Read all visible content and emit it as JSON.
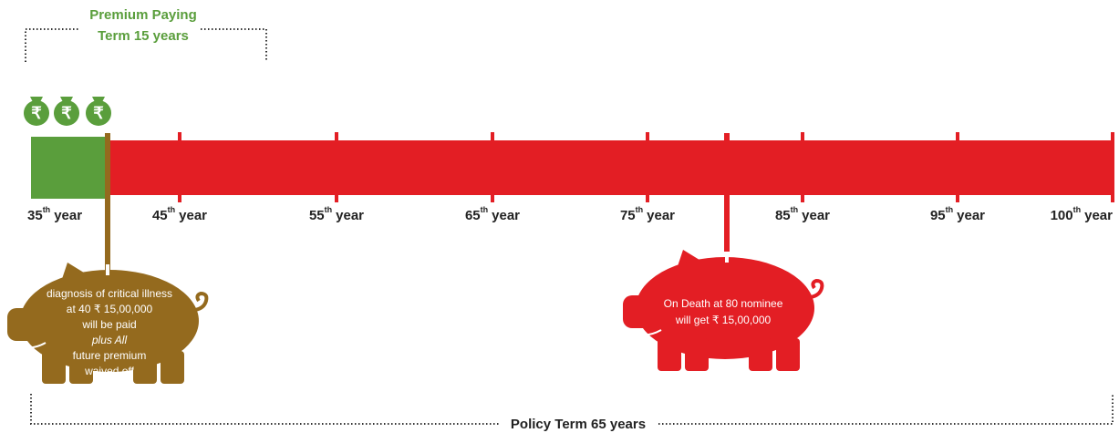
{
  "premium_term": {
    "line1": "Premium Paying",
    "line2": "Term 15 years"
  },
  "currency_icon": "₹",
  "timeline": {
    "labels": [
      {
        "number": "35",
        "suffix": "th",
        "word": "year"
      },
      {
        "number": "45",
        "suffix": "th",
        "word": "year"
      },
      {
        "number": "55",
        "suffix": "th",
        "word": "year"
      },
      {
        "number": "65",
        "suffix": "th",
        "word": "year"
      },
      {
        "number": "75",
        "suffix": "th",
        "word": "year"
      },
      {
        "number": "85",
        "suffix": "th",
        "word": "year"
      },
      {
        "number": "95",
        "suffix": "th",
        "word": "year"
      },
      {
        "number": "100",
        "suffix": "th",
        "word": "year"
      }
    ]
  },
  "illness_pig": {
    "lines": [
      "diagnosis of critical illness",
      "at 40 ₹ 15,00,000",
      "will be paid",
      "plus All",
      "future premium",
      "waived off"
    ]
  },
  "death_pig": {
    "lines": [
      "On Death at 80 nominee",
      "will get ₹ 15,00,000"
    ]
  },
  "policy_term": "Policy Term 65 years"
}
